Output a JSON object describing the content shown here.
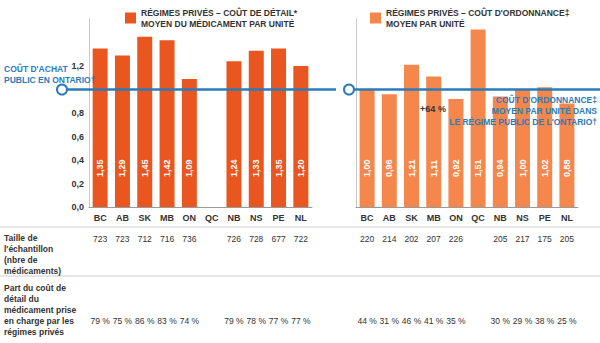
{
  "chart_data": [
    {
      "type": "bar",
      "categories": [
        "BC",
        "AB",
        "SK",
        "MB",
        "ON",
        "QC",
        "NB",
        "NS",
        "PE",
        "NL"
      ],
      "series": [
        {
          "name": "RÉGIMES PRIVÉS – COÛT DE DÉTAIL*\nMOYEN DU MÉDICAMENT PAR UNITÉ",
          "color": "#e9561f",
          "values": [
            1.35,
            1.29,
            1.45,
            1.42,
            1.09,
            null,
            1.24,
            1.33,
            1.35,
            1.2
          ],
          "value_labels": [
            "1,35",
            "1,29",
            "1,45",
            "1,42",
            "1,09",
            null,
            "1,24",
            "1,33",
            "1,35",
            "1,20"
          ]
        }
      ],
      "ylim": [
        0,
        1.6
      ],
      "yticks": [
        {
          "value": 0,
          "label": "0,0"
        },
        {
          "value": 0.2,
          "label": "0,2"
        },
        {
          "value": 0.4,
          "label": "0,4"
        },
        {
          "value": 0.6,
          "label": "0,6"
        },
        {
          "value": 0.8,
          "label": "0,8"
        },
        {
          "value": 1.2,
          "label": "1,2"
        }
      ],
      "grid": false,
      "legend": "top",
      "data_labels": true,
      "reference": {
        "value": 1,
        "label": "COÛT D'ACHAT\nPUBLIC EN ONTARIO†"
      }
    },
    {
      "type": "bar",
      "categories": [
        "BC",
        "AB",
        "SK",
        "MB",
        "ON",
        "QC",
        "NB",
        "NS",
        "PE",
        "NL"
      ],
      "series": [
        {
          "name": "RÉGIMES PRIVÉS – COÛT D'ORDONNANCE‡\nMOYEN PAR UNITÉ",
          "color": "#f5874d",
          "values": [
            1.0,
            0.96,
            1.21,
            1.11,
            0.92,
            1.51,
            0.94,
            1.0,
            1.02,
            0.88
          ],
          "value_labels": [
            "1,00",
            "0,96",
            "1,21",
            "1,11",
            "0,92",
            "1,51",
            "0,94",
            "1,00",
            "1,02",
            "0,88"
          ]
        }
      ],
      "ylim": [
        0,
        1.6
      ],
      "grid": false,
      "legend": "top",
      "data_labels": true,
      "tick_labels": "x",
      "reference": {
        "value": 1,
        "label": "COÛT D'ORDONNANCE‡\nMOYEN PAR UNITÉ DANS\nLE RÉGIME PUBLIC DE L'ONTARIO†"
      },
      "annotation": {
        "text": "+64 %",
        "category": "ON"
      }
    }
  ],
  "table": {
    "rows": [
      {
        "label": "Taille de\nl'échantillon\n(nbre de\nmédicaments)",
        "cells": [
          [
            "723",
            "723",
            "712",
            "716",
            "736",
            null,
            "726",
            "728",
            "677",
            "722"
          ],
          [
            "220",
            "214",
            "202",
            "207",
            "226",
            null,
            "205",
            "217",
            "175",
            "205"
          ]
        ]
      },
      {
        "label": "Part du coût de\ndétail du\nmédicament prise\nen charge par les\nrégimes privés",
        "cells": [
          [
            "79 %",
            "75 %",
            "86 %",
            "83 %",
            "74 %",
            null,
            "79 %",
            "78 %",
            "77 %",
            "77 %"
          ],
          [
            "44 %",
            "31 %",
            "46 %",
            "41 %",
            "35 %",
            null,
            "30 %",
            "29 %",
            "38 %",
            "25 %"
          ]
        ]
      }
    ]
  }
}
